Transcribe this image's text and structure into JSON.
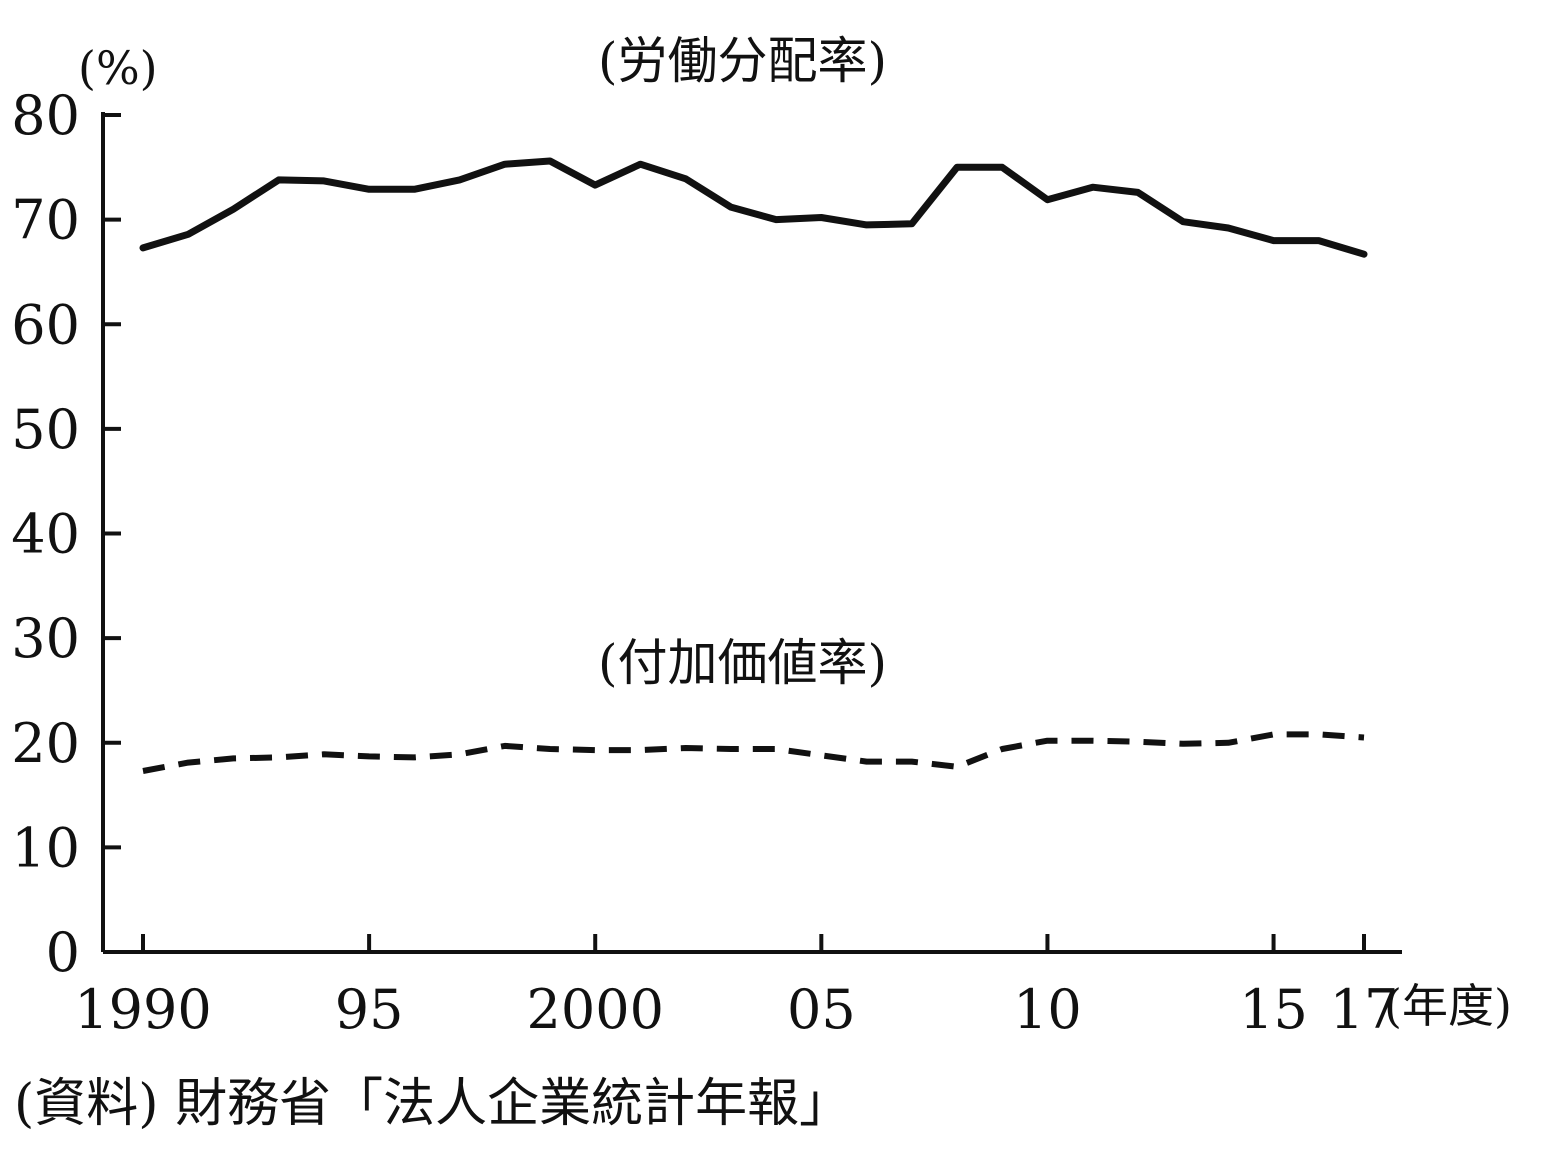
{
  "chart_data": {
    "type": "line",
    "ylabel": "(%)",
    "xlabel": "(年度)",
    "ylim": [
      0,
      80
    ],
    "yticks": [
      "0",
      "10",
      "20",
      "30",
      "40",
      "50",
      "60",
      "70",
      "80"
    ],
    "xlim": [
      1990,
      2017
    ],
    "xticks": [
      {
        "value": 1990,
        "label": "1990"
      },
      {
        "value": 1995,
        "label": "95"
      },
      {
        "value": 2000,
        "label": "2000"
      },
      {
        "value": 2005,
        "label": "05"
      },
      {
        "value": 2010,
        "label": "10"
      },
      {
        "value": 2015,
        "label": "15"
      },
      {
        "value": 2017,
        "label": "17"
      }
    ],
    "grid": false,
    "x": [
      1990,
      1991,
      1992,
      1993,
      1994,
      1995,
      1996,
      1997,
      1998,
      1999,
      2000,
      2001,
      2002,
      2003,
      2004,
      2005,
      2006,
      2007,
      2008,
      2009,
      2010,
      2011,
      2012,
      2013,
      2014,
      2015,
      2016,
      2017
    ],
    "series": [
      {
        "name": "(労働分配率)",
        "style": "solid",
        "values": [
          67.3,
          68.6,
          71.0,
          73.8,
          73.7,
          72.9,
          72.9,
          73.8,
          75.3,
          75.6,
          73.3,
          75.3,
          73.9,
          71.2,
          70.0,
          70.2,
          69.5,
          69.6,
          75.0,
          75.0,
          71.9,
          73.1,
          72.6,
          69.8,
          69.2,
          68.0,
          68.0,
          66.7
        ]
      },
      {
        "name": "(付加価値率)",
        "style": "dashed",
        "values": [
          17.3,
          18.1,
          18.5,
          18.6,
          18.9,
          18.7,
          18.6,
          18.9,
          19.7,
          19.4,
          19.3,
          19.3,
          19.5,
          19.4,
          19.4,
          18.8,
          18.2,
          18.2,
          17.7,
          19.4,
          20.2,
          20.2,
          20.1,
          19.9,
          20.0,
          20.8,
          20.8,
          20.5
        ]
      }
    ],
    "source": "(資料) 財務省「法人企業統計年報」"
  }
}
